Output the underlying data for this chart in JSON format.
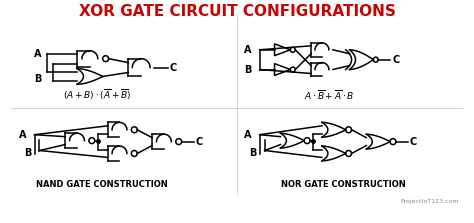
{
  "title": "XOR GATE CIRCUIT CONFIGURATIONS",
  "title_color": "#CC0000",
  "title_fontsize": 11,
  "bg_color": "#FFFFFF",
  "label_nand": "NAND GATE CONSTRUCTION",
  "label_nor": "NOR GATE CONSTRUCTION",
  "watermark": "ProjectIoT123.com"
}
